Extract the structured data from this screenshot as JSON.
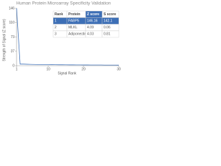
{
  "chart_data": {
    "type": "line",
    "title": "Human Protein Microarray Specificity Validation",
    "ylabel": "Strength of Signal (Z score)",
    "xlabel": "Signal Rank",
    "x": [
      1,
      2,
      3,
      4,
      5,
      6,
      7,
      8,
      9,
      10,
      11,
      12,
      13,
      14,
      15,
      16,
      17,
      18,
      19,
      20,
      21,
      22,
      23,
      24,
      25,
      26,
      27,
      28,
      29,
      30
    ],
    "series": [
      {
        "color": "#3d6fb6",
        "values": [
          146.16,
          4.09,
          4.03,
          3.6,
          3.3,
          3.1,
          2.9,
          2.8,
          2.7,
          2.6,
          2.5,
          2.4,
          2.3,
          2.3,
          2.2,
          2.1,
          2.1,
          2.0,
          2.0,
          1.9,
          1.9,
          1.8,
          1.8,
          1.7,
          1.7,
          1.6,
          1.6,
          1.5,
          1.5,
          1.4
        ]
      }
    ],
    "xlim": [
      1,
      30
    ],
    "xticks": [
      1,
      10,
      20,
      30
    ],
    "ylim": [
      0,
      146
    ],
    "yticks": [
      0,
      37,
      73,
      110,
      146
    ],
    "table": {
      "columns": [
        "Rank",
        "Protein",
        "Z score",
        "S score"
      ],
      "rows": [
        [
          1,
          "FABP5",
          146.16,
          142.1
        ],
        [
          2,
          "MLKL",
          4.09,
          0.06
        ],
        [
          3,
          "Adiponectin",
          4.03,
          0.81
        ]
      ]
    }
  }
}
